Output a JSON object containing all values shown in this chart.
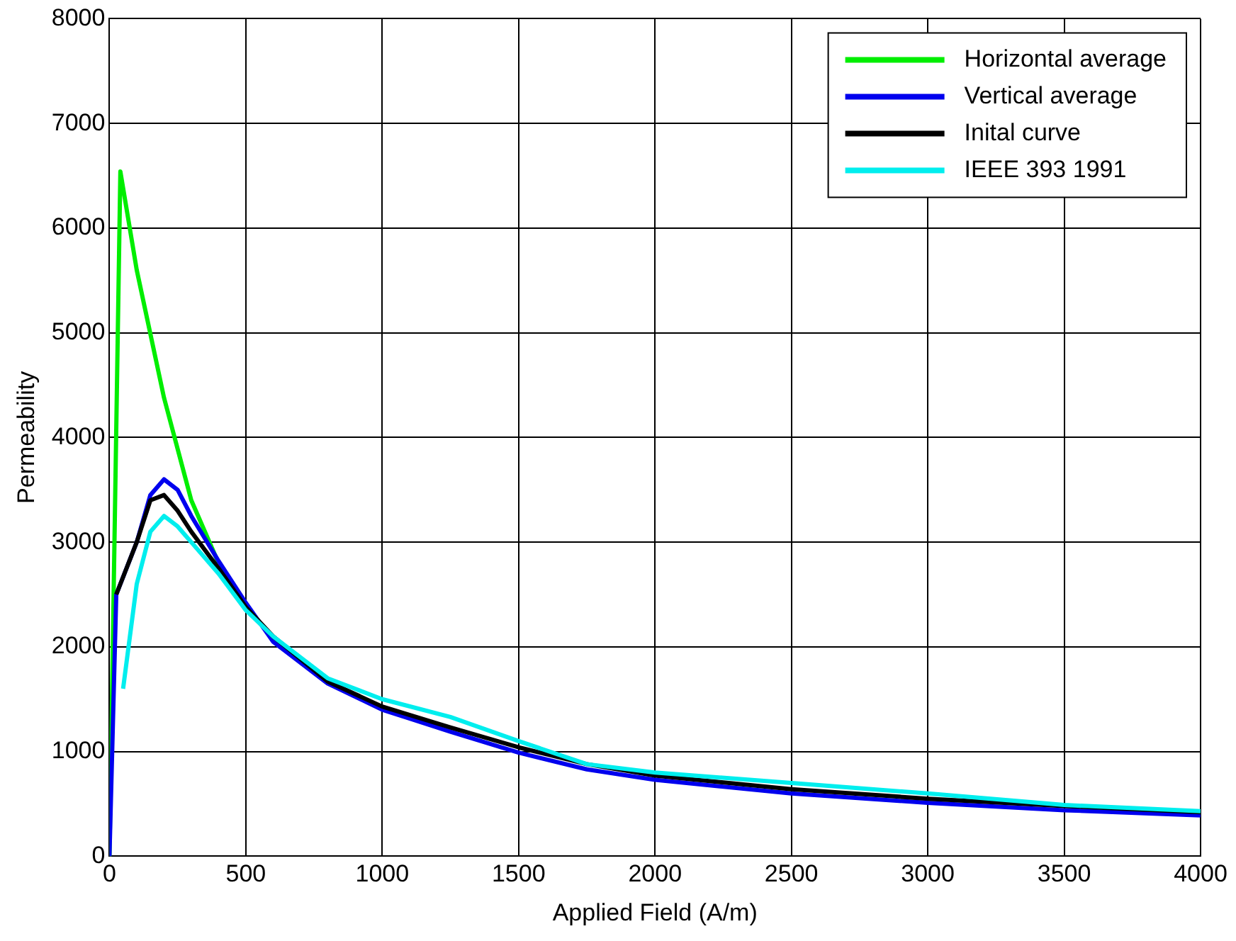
{
  "chart_data": {
    "type": "line",
    "xlabel": "Applied Field (A/m)",
    "ylabel": "Permeability",
    "xlim": [
      0,
      4000
    ],
    "xticks": [
      0,
      500,
      1000,
      1500,
      2000,
      2500,
      3000,
      3500,
      4000
    ],
    "ylim": [
      0,
      8000
    ],
    "yticks": [
      0,
      1000,
      2000,
      3000,
      4000,
      5000,
      6000,
      7000,
      8000
    ],
    "grid": true,
    "legend": "top right",
    "marker": "none",
    "series": [
      {
        "name": "Horizontal average",
        "color": "#00ee00",
        "x": [
          0,
          40,
          100,
          200,
          300,
          400
        ],
        "values": [
          0,
          6540,
          5600,
          4380,
          3400,
          2800
        ]
      },
      {
        "name": "Vertical average",
        "color": "#0000ee",
        "x": [
          0,
          25,
          100,
          150,
          200,
          250,
          300,
          400,
          500,
          600,
          800,
          1000,
          1250,
          1500,
          1750,
          2000,
          2500,
          3000,
          3500,
          4000
        ],
        "values": [
          0,
          2500,
          3000,
          3450,
          3600,
          3500,
          3250,
          2820,
          2420,
          2050,
          1650,
          1400,
          1190,
          990,
          830,
          730,
          600,
          510,
          440,
          390
        ]
      },
      {
        "name": "Inital curve",
        "color": "#000000",
        "x": [
          25,
          100,
          150,
          200,
          250,
          300,
          400,
          500,
          600,
          800,
          1000,
          1250,
          1500,
          1750,
          2000,
          2500,
          3000,
          3500,
          4000
        ],
        "values": [
          2500,
          3000,
          3400,
          3450,
          3300,
          3100,
          2750,
          2380,
          2100,
          1670,
          1430,
          1230,
          1040,
          880,
          770,
          640,
          550,
          480,
          420
        ]
      },
      {
        "name": "IEEE 393 1991",
        "color": "#00eeee",
        "x": [
          50,
          100,
          150,
          200,
          250,
          300,
          400,
          500,
          600,
          800,
          1000,
          1250,
          1500,
          1750,
          2000,
          2500,
          3000,
          3500,
          4000
        ],
        "values": [
          1600,
          2600,
          3100,
          3250,
          3150,
          3000,
          2700,
          2350,
          2100,
          1700,
          1500,
          1330,
          1100,
          880,
          800,
          700,
          600,
          490,
          430
        ]
      }
    ]
  }
}
